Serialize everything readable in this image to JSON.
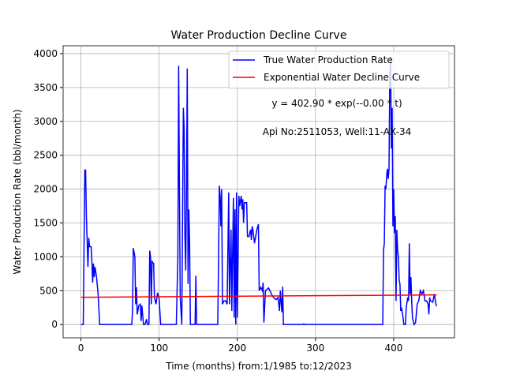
{
  "chart_data": {
    "type": "line",
    "title": "Water Production Decline Curve",
    "xlabel": "Time (months) from:1/1985 to:12/2023",
    "ylabel": "Water Production Rate (bbl/month)",
    "annotations": [
      "y = 402.90 * exp(--0.00 * t)",
      "Api No:2511053, Well:11-AX-34"
    ],
    "xlim": [
      -22.75,
      477.75
    ],
    "ylim": [
      -196,
      4116
    ],
    "xticks": [
      0,
      100,
      200,
      300,
      400
    ],
    "yticks": [
      0,
      500,
      1000,
      1500,
      2000,
      2500,
      3000,
      3500,
      4000
    ],
    "grid": true,
    "legend": "upper right",
    "series": [
      {
        "name": "True Water Production Rate",
        "color": "#0000ff",
        "x": [
          0,
          3,
          5,
          6,
          7,
          9,
          10,
          11,
          13,
          14,
          15,
          16,
          17,
          18,
          20,
          22,
          24,
          65,
          66,
          67,
          69,
          70,
          71,
          72,
          74,
          76,
          77,
          78,
          80,
          82,
          84,
          85,
          87,
          88,
          89,
          90,
          91,
          93,
          94,
          96,
          98,
          100,
          102,
          122,
          124,
          125,
          126,
          127,
          129,
          131,
          132,
          133,
          134,
          135,
          136,
          137,
          138,
          139,
          140,
          146,
          147,
          148,
          175,
          176,
          177,
          178,
          179,
          180,
          181,
          183,
          185,
          187,
          189,
          190,
          192,
          193,
          195,
          196,
          197,
          198,
          199,
          200,
          202,
          203,
          205,
          206,
          207,
          208,
          209,
          212,
          213,
          215,
          217,
          218,
          219,
          220,
          222,
          225,
          227,
          228,
          230,
          232,
          233,
          234,
          236,
          238,
          240,
          245,
          248,
          250,
          252,
          254,
          255,
          257,
          258,
          259,
          284,
          285,
          286,
          386,
          387,
          388,
          389,
          390,
          391,
          392,
          393,
          394,
          395,
          396,
          397,
          398,
          399,
          400,
          401,
          402,
          403,
          404,
          405,
          406,
          407,
          408,
          409,
          410,
          412,
          413,
          415,
          416,
          418,
          419,
          420,
          421,
          422,
          423,
          424,
          426,
          428,
          430,
          432,
          434,
          436,
          438,
          440,
          442,
          444,
          445,
          446,
          447,
          450,
          452,
          454,
          455
        ],
        "values": [
          0,
          0,
          2280,
          2280,
          1600,
          850,
          1280,
          1150,
          1150,
          950,
          620,
          900,
          700,
          850,
          700,
          450,
          0,
          0,
          200,
          1130,
          1000,
          300,
          550,
          150,
          280,
          300,
          50,
          280,
          0,
          0,
          80,
          0,
          0,
          1090,
          1000,
          300,
          930,
          900,
          400,
          300,
          470,
          380,
          0,
          0,
          1000,
          3820,
          2000,
          400,
          0,
          3200,
          2900,
          1300,
          800,
          2000,
          3780,
          600,
          1700,
          1200,
          0,
          0,
          720,
          0,
          0,
          900,
          2050,
          1900,
          1450,
          2000,
          300,
          350,
          350,
          300,
          1950,
          300,
          1400,
          200,
          1870,
          100,
          1700,
          0,
          1950,
          100,
          1900,
          1750,
          1900,
          1700,
          1850,
          1500,
          1800,
          1800,
          1300,
          1300,
          1400,
          1250,
          1450,
          1400,
          1200,
          1400,
          1480,
          500,
          550,
          500,
          620,
          30,
          500,
          520,
          540,
          420,
          380,
          370,
          400,
          200,
          500,
          180,
          560,
          0,
          0,
          10,
          0,
          0,
          1100,
          1200,
          2050,
          2000,
          2200,
          2300,
          2150,
          2300,
          3650,
          3950,
          2600,
          3200,
          1450,
          2000,
          1350,
          1600,
          350,
          1400,
          1100,
          1000,
          650,
          600,
          200,
          250,
          100,
          0,
          0,
          250,
          400,
          350,
          1200,
          450,
          700,
          350,
          100,
          0,
          30,
          300,
          350,
          500,
          450,
          500,
          350,
          350,
          300,
          150,
          400,
          350,
          330,
          450,
          300,
          270
        ]
      },
      {
        "name": "Exponential Water Decline Curve",
        "color": "#ff0000",
        "x": [
          0,
          455
        ],
        "values": [
          402.9,
          437
        ]
      }
    ]
  }
}
